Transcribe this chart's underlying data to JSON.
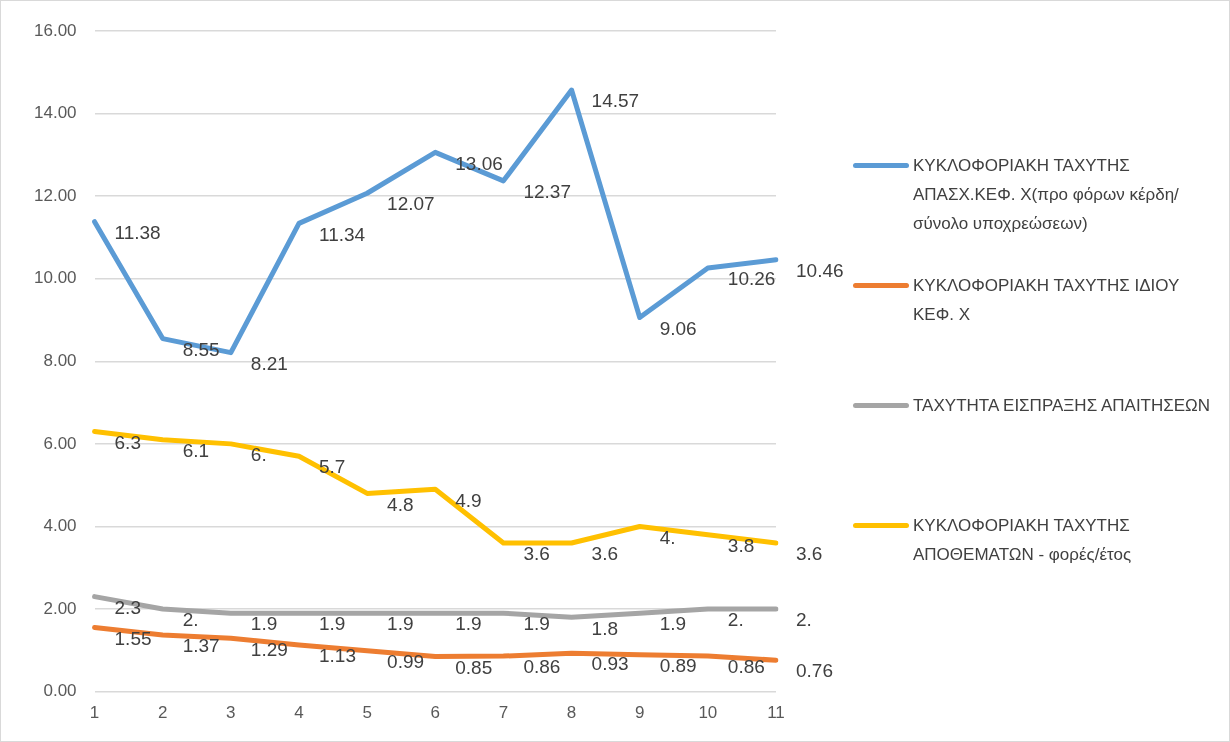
{
  "chart_data": {
    "type": "line",
    "categories": [
      "1",
      "2",
      "3",
      "4",
      "5",
      "6",
      "7",
      "8",
      "9",
      "10",
      "11"
    ],
    "ylim": [
      0,
      16
    ],
    "yticks": [
      {
        "value": 0,
        "label": "0.00"
      },
      {
        "value": 2,
        "label": "2.00"
      },
      {
        "value": 4,
        "label": "4.00"
      },
      {
        "value": 6,
        "label": "6.00"
      },
      {
        "value": 8,
        "label": "8.00"
      },
      {
        "value": 10,
        "label": "10.00"
      },
      {
        "value": 12,
        "label": "12.00"
      },
      {
        "value": 14,
        "label": "14.00"
      },
      {
        "value": 16,
        "label": "16.00"
      }
    ],
    "grid": "y",
    "legend": "right",
    "marker": "none",
    "line_style": "solid",
    "series": [
      {
        "name": "ΚΥΚΛΟΦΟΡΙΑΚΗ ΤΑΧΥΤΗΣ ΑΠΑΣΧ.ΚΕΦ. Χ(προ φόρων κέρδη/σύνολο υποχρεώσεων)",
        "color": "#5b9bd5",
        "values": [
          11.38,
          8.55,
          8.21,
          11.34,
          12.07,
          13.06,
          12.37,
          14.57,
          9.06,
          10.26,
          10.46
        ],
        "value_labels": [
          "11.38",
          "8.55",
          "8.21",
          "11.34",
          "12.07",
          "13.06",
          "12.37",
          "14.57",
          "9.06",
          "10.26",
          "10.46"
        ]
      },
      {
        "name": "ΚΥΚΛΟΦΟΡΙΑΚΗ ΤΑΧΥΤΗΣ ΙΔΙΟΥ ΚΕΦ. Χ",
        "color": "#ed7d31",
        "values": [
          1.55,
          1.37,
          1.29,
          1.13,
          0.99,
          0.85,
          0.86,
          0.93,
          0.89,
          0.86,
          0.76
        ],
        "value_labels": [
          "1.55",
          "1.37",
          "1.29",
          "1.13",
          "0.99",
          "0.85",
          "0.86",
          "0.93",
          "0.89",
          "0.86",
          "0.76"
        ]
      },
      {
        "name": "ΤΑΧΥΤΗΤΑ ΕΙΣΠΡΑΞΗΣ ΑΠΑΙΤΗΣΕΩΝ",
        "color": "#a5a5a5",
        "values": [
          2.3,
          2.0,
          1.9,
          1.9,
          1.9,
          1.9,
          1.9,
          1.8,
          1.9,
          2.0,
          2.0
        ],
        "value_labels": [
          "2.3",
          "2.",
          "1.9",
          "1.9",
          "1.9",
          "1.9",
          "1.9",
          "1.8",
          "1.9",
          "2.",
          "2."
        ]
      },
      {
        "name": "ΚΥΚΛΟΦΟΡΙΑΚΗ ΤΑΧΥΤΗΣ ΑΠΟΘΕΜΑΤΩΝ - φορές/έτος",
        "color": "#ffc000",
        "values": [
          6.3,
          6.1,
          6.0,
          5.7,
          4.8,
          4.9,
          3.6,
          3.6,
          4.0,
          3.8,
          3.6
        ],
        "value_labels": [
          "6.3",
          "6.1",
          "6.",
          "5.7",
          "4.8",
          "4.9",
          "3.6",
          "3.6",
          "4.",
          "3.8",
          "3.6"
        ]
      }
    ]
  }
}
